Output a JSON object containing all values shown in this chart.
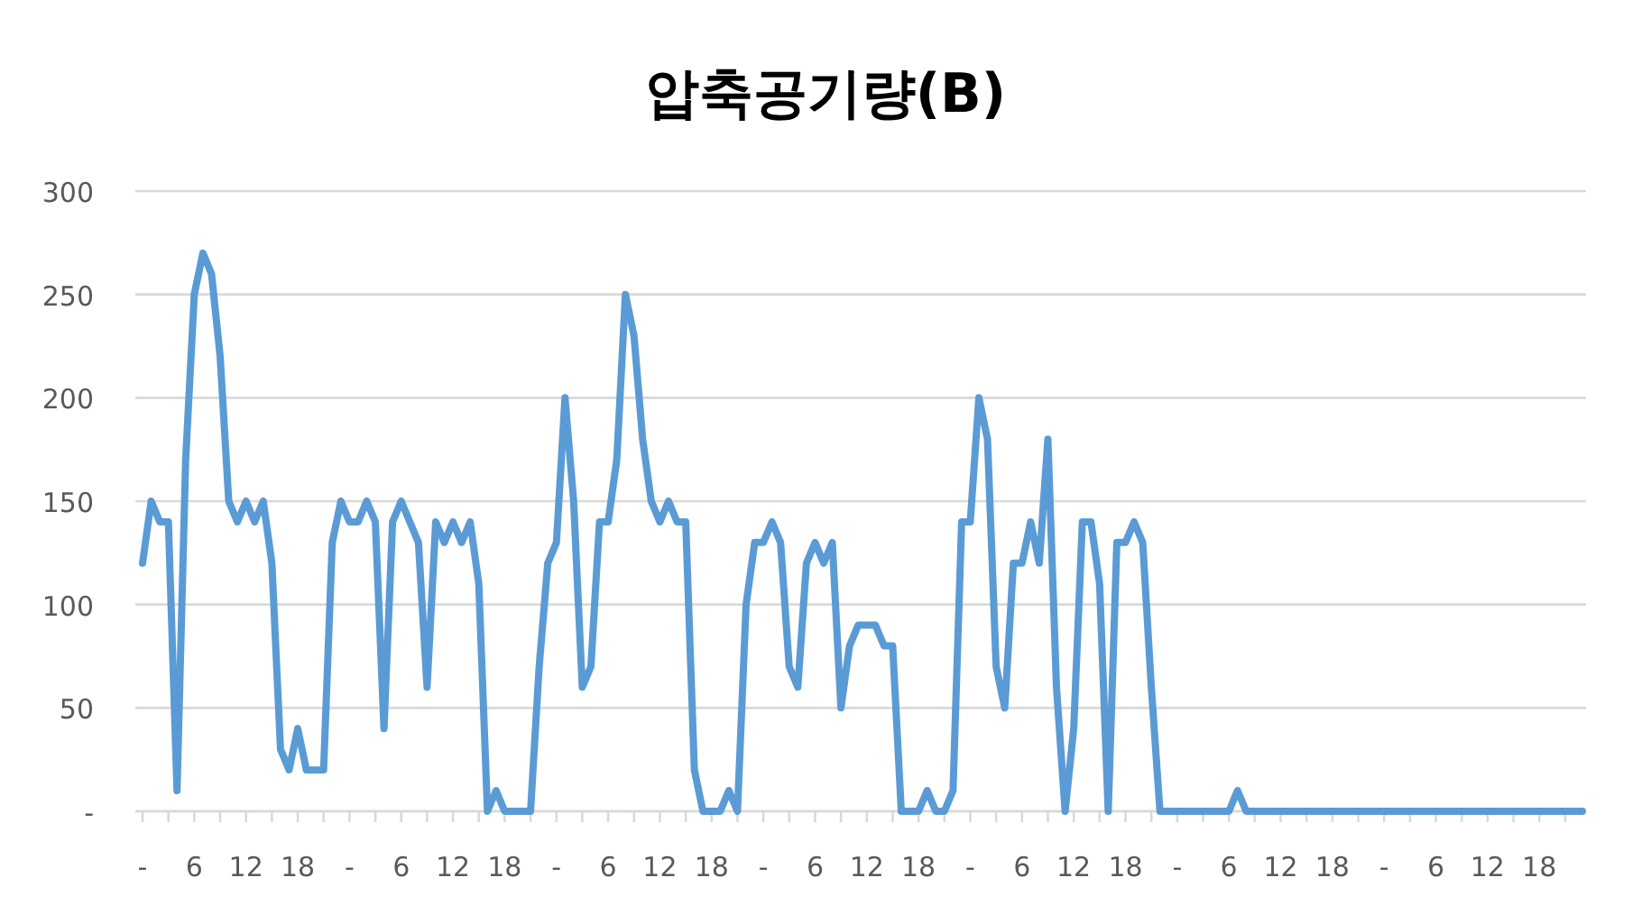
{
  "chart_data": {
    "type": "line",
    "title": "압축공기량(B)",
    "categories": [
      "-",
      null,
      null,
      null,
      null,
      null,
      "6",
      null,
      null,
      null,
      null,
      null,
      "12",
      null,
      null,
      null,
      null,
      null,
      "18",
      null,
      null,
      null,
      null,
      null,
      "-",
      null,
      null,
      null,
      null,
      null,
      "6",
      null,
      null,
      null,
      null,
      null,
      "12",
      null,
      null,
      null,
      null,
      null,
      "18",
      null,
      null,
      null,
      null,
      null,
      "-",
      null,
      null,
      null,
      null,
      null,
      "6",
      null,
      null,
      null,
      null,
      null,
      "12",
      null,
      null,
      null,
      null,
      null,
      "18",
      null,
      null,
      null,
      null,
      null,
      "-",
      null,
      null,
      null,
      null,
      null,
      "6",
      null,
      null,
      null,
      null,
      null,
      "12",
      null,
      null,
      null,
      null,
      null,
      "18",
      null,
      null,
      null,
      null,
      null,
      "-",
      null,
      null,
      null,
      null,
      null,
      "6",
      null,
      null,
      null,
      null,
      null,
      "12",
      null,
      null,
      null,
      null,
      null,
      "18",
      null,
      null,
      null,
      null,
      null,
      "-",
      null,
      null,
      null,
      null,
      null,
      "6",
      null,
      null,
      null,
      null,
      null,
      "12",
      null,
      null,
      null,
      null,
      null,
      "18",
      null,
      null,
      null,
      null,
      null,
      "-",
      null,
      null,
      null,
      null,
      null,
      "6",
      null,
      null,
      null,
      null,
      null,
      "12",
      null,
      null,
      null,
      null,
      null,
      "18",
      null,
      null,
      null,
      null,
      null
    ],
    "series": [
      {
        "color": "#5b9bd5",
        "values": [
          120,
          150,
          140,
          140,
          10,
          170,
          250,
          270,
          260,
          220,
          150,
          140,
          150,
          140,
          150,
          120,
          30,
          20,
          40,
          20,
          20,
          20,
          130,
          150,
          140,
          140,
          150,
          140,
          40,
          140,
          150,
          140,
          130,
          60,
          140,
          130,
          140,
          130,
          140,
          110,
          0,
          10,
          0,
          0,
          0,
          0,
          70,
          120,
          130,
          200,
          150,
          60,
          70,
          140,
          140,
          170,
          250,
          230,
          180,
          150,
          140,
          150,
          140,
          140,
          20,
          0,
          0,
          0,
          10,
          0,
          100,
          130,
          130,
          140,
          130,
          70,
          60,
          120,
          130,
          120,
          130,
          50,
          80,
          90,
          90,
          90,
          80,
          80,
          0,
          0,
          0,
          10,
          0,
          0,
          10,
          140,
          140,
          200,
          180,
          70,
          50,
          120,
          120,
          140,
          120,
          180,
          60,
          0,
          40,
          140,
          140,
          110,
          0,
          130,
          130,
          140,
          130,
          60,
          0,
          0,
          0,
          0,
          0,
          0,
          0,
          0,
          0,
          10,
          0,
          0,
          0,
          0,
          0,
          0,
          0,
          0,
          0,
          0,
          0,
          0,
          0,
          0,
          0,
          0,
          0,
          0,
          0,
          0,
          0,
          0,
          0,
          0,
          0,
          0,
          0,
          0,
          0,
          0,
          0,
          0,
          0,
          0,
          0,
          0,
          0,
          0,
          0,
          0
        ]
      }
    ],
    "ylim": [
      0,
      300
    ],
    "yticks": [
      {
        "value": 0,
        "label": "-"
      },
      50,
      100,
      150,
      200,
      250,
      300
    ],
    "grid": "y",
    "marker": "none",
    "line_style": "solid"
  }
}
